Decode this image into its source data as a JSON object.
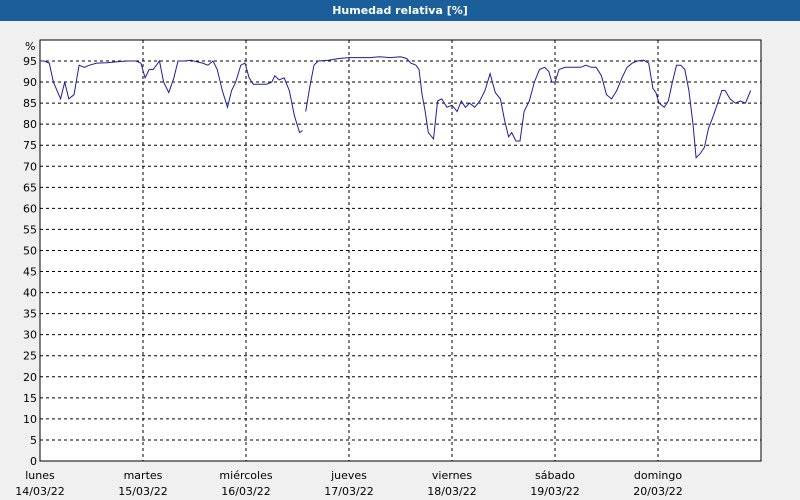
{
  "window": {
    "title": "Humedad relativa [%]"
  },
  "colors": {
    "title_bar": "#1a5e9a",
    "title_text": "#ffffff",
    "plot_background": "#ffffff",
    "page_background": "#f0f0f0",
    "series_line": "#1f1f99",
    "grid": "#000000"
  },
  "chart_data": {
    "type": "line",
    "title": "Humedad relativa [%]",
    "ylabel": "%",
    "xlabel": "",
    "ylim": [
      0,
      95
    ],
    "yticks": [
      0,
      5,
      10,
      15,
      20,
      25,
      30,
      35,
      40,
      45,
      50,
      55,
      60,
      65,
      70,
      75,
      80,
      85,
      90,
      95
    ],
    "xlim": [
      0,
      7
    ],
    "grid": true,
    "grid_style": "dashed",
    "days": [
      {
        "name": "lunes",
        "date": "14/03/22"
      },
      {
        "name": "martes",
        "date": "15/03/22"
      },
      {
        "name": "miércoles",
        "date": "16/03/22"
      },
      {
        "name": "jueves",
        "date": "17/03/22"
      },
      {
        "name": "viernes",
        "date": "18/03/22"
      },
      {
        "name": "sábado",
        "date": "19/03/22"
      },
      {
        "name": "domingo",
        "date": "20/03/22"
      }
    ],
    "series": [
      {
        "segments": [
          [
            [
              0.0,
              95.0
            ],
            [
              0.04,
              95.0
            ],
            [
              0.09,
              94.5
            ],
            [
              0.13,
              90.0
            ],
            [
              0.2,
              86.0
            ],
            [
              0.24,
              90.0
            ],
            [
              0.28,
              86.0
            ],
            [
              0.33,
              87.0
            ],
            [
              0.38,
              94.0
            ],
            [
              0.43,
              93.5
            ],
            [
              0.48,
              94.0
            ],
            [
              0.55,
              94.5
            ],
            [
              0.65,
              94.6
            ],
            [
              0.75,
              94.8
            ],
            [
              0.85,
              95.0
            ],
            [
              0.93,
              95.0
            ],
            [
              0.98,
              94.5
            ],
            [
              1.02,
              91.0
            ],
            [
              1.06,
              93.0
            ],
            [
              1.1,
              93.0
            ],
            [
              1.16,
              95.0
            ],
            [
              1.2,
              90.0
            ],
            [
              1.25,
              87.5
            ],
            [
              1.3,
              91.0
            ],
            [
              1.34,
              95.0
            ],
            [
              1.4,
              95.0
            ],
            [
              1.47,
              95.2
            ],
            [
              1.52,
              94.8
            ],
            [
              1.58,
              94.5
            ],
            [
              1.63,
              94.0
            ],
            [
              1.68,
              95.0
            ],
            [
              1.72,
              93.0
            ],
            [
              1.77,
              88.0
            ],
            [
              1.82,
              84.0
            ],
            [
              1.86,
              88.0
            ],
            [
              1.9,
              90.0
            ],
            [
              1.95,
              94.0
            ],
            [
              1.99,
              94.5
            ],
            [
              2.03,
              91.0
            ],
            [
              2.07,
              89.5
            ],
            [
              2.12,
              89.5
            ],
            [
              2.2,
              89.5
            ],
            [
              2.25,
              90.0
            ],
            [
              2.28,
              91.5
            ],
            [
              2.32,
              90.5
            ],
            [
              2.37,
              91.0
            ],
            [
              2.42,
              88.0
            ],
            [
              2.47,
              82.0
            ],
            [
              2.52,
              78.0
            ],
            [
              2.55,
              78.5
            ]
          ],
          [
            [
              2.58,
              83.0
            ],
            [
              2.62,
              89.0
            ],
            [
              2.66,
              94.0
            ],
            [
              2.7,
              95.0
            ],
            [
              2.8,
              95.2
            ],
            [
              2.9,
              95.6
            ],
            [
              3.0,
              95.8
            ],
            [
              3.1,
              95.8
            ],
            [
              3.2,
              95.8
            ],
            [
              3.3,
              96.0
            ],
            [
              3.4,
              95.8
            ],
            [
              3.5,
              96.0
            ],
            [
              3.56,
              95.6
            ],
            [
              3.6,
              94.5
            ],
            [
              3.65,
              94.0
            ],
            [
              3.68,
              93.0
            ],
            [
              3.71,
              87.0
            ],
            [
              3.74,
              83.0
            ],
            [
              3.77,
              78.0
            ],
            [
              3.82,
              76.5
            ],
            [
              3.86,
              85.5
            ],
            [
              3.9,
              86.0
            ],
            [
              3.95,
              84.0
            ],
            [
              4.0,
              84.5
            ],
            [
              4.05,
              83.0
            ],
            [
              4.09,
              85.5
            ],
            [
              4.13,
              84.0
            ],
            [
              4.17,
              85.0
            ],
            [
              4.22,
              84.0
            ],
            [
              4.27,
              85.5
            ],
            [
              4.32,
              88.0
            ],
            [
              4.37,
              92.0
            ],
            [
              4.42,
              87.5
            ],
            [
              4.47,
              86.0
            ],
            [
              4.51,
              81.0
            ],
            [
              4.55,
              77.0
            ],
            [
              4.58,
              78.0
            ],
            [
              4.62,
              76.0
            ],
            [
              4.66,
              76.0
            ],
            [
              4.7,
              83.0
            ],
            [
              4.75,
              85.5
            ],
            [
              4.8,
              90.0
            ],
            [
              4.85,
              93.0
            ],
            [
              4.9,
              93.5
            ],
            [
              4.94,
              92.5
            ],
            [
              4.97,
              90.0
            ],
            [
              5.0,
              90.0
            ],
            [
              5.04,
              93.0
            ],
            [
              5.1,
              93.5
            ],
            [
              5.18,
              93.5
            ],
            [
              5.25,
              93.5
            ],
            [
              5.3,
              94.0
            ],
            [
              5.35,
              93.5
            ],
            [
              5.4,
              93.5
            ],
            [
              5.45,
              91.5
            ],
            [
              5.5,
              87.0
            ],
            [
              5.55,
              86.0
            ],
            [
              5.6,
              88.0
            ],
            [
              5.65,
              91.0
            ],
            [
              5.7,
              93.5
            ],
            [
              5.75,
              94.5
            ],
            [
              5.8,
              95.0
            ],
            [
              5.86,
              95.2
            ],
            [
              5.91,
              94.5
            ],
            [
              5.95,
              88.5
            ],
            [
              5.98,
              87.5
            ],
            [
              6.01,
              85.0
            ],
            [
              6.06,
              84.0
            ],
            [
              6.1,
              85.5
            ],
            [
              6.14,
              90.0
            ],
            [
              6.18,
              94.0
            ],
            [
              6.22,
              94.0
            ],
            [
              6.26,
              93.0
            ],
            [
              6.3,
              88.0
            ],
            [
              6.34,
              80.0
            ],
            [
              6.37,
              72.0
            ],
            [
              6.41,
              73.0
            ],
            [
              6.45,
              74.5
            ],
            [
              6.49,
              79.0
            ],
            [
              6.53,
              81.5
            ],
            [
              6.58,
              85.0
            ],
            [
              6.62,
              88.0
            ],
            [
              6.65,
              88.0
            ],
            [
              6.7,
              86.0
            ],
            [
              6.75,
              85.0
            ],
            [
              6.8,
              85.5
            ],
            [
              6.85,
              85.0
            ],
            [
              6.9,
              88.0
            ]
          ]
        ]
      }
    ]
  }
}
